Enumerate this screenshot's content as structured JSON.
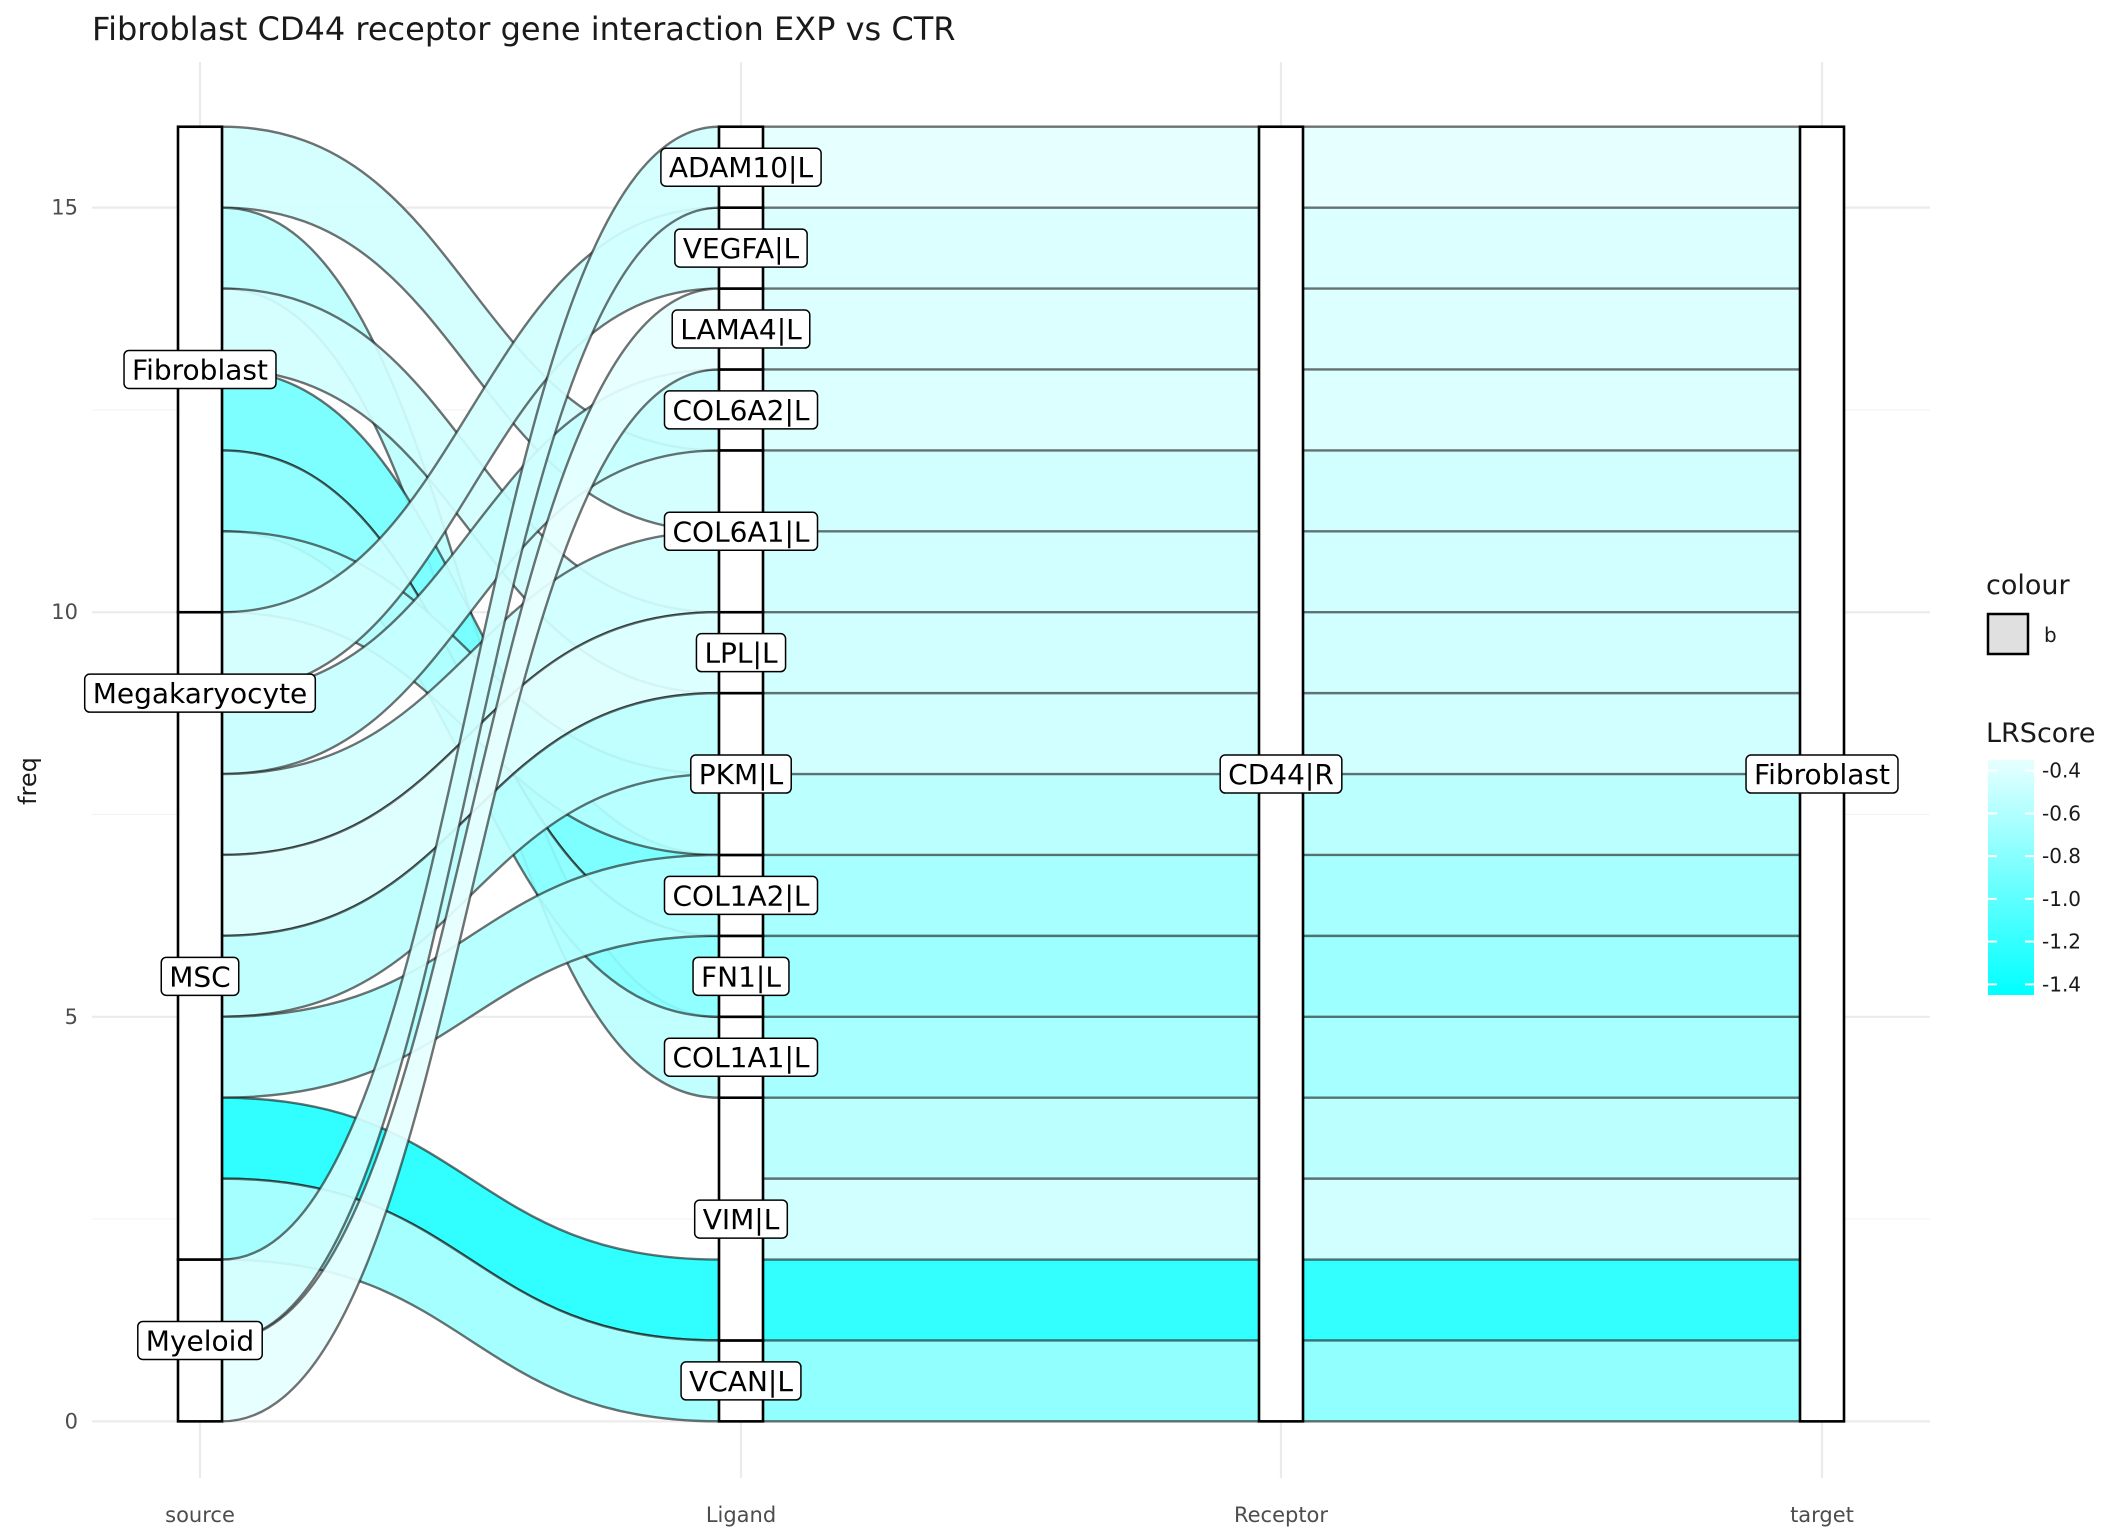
{
  "chart_data": {
    "type": "alluvial",
    "title": "Fibroblast CD44 receptor gene interaction EXP vs CTR",
    "ylabel": "freq",
    "xlabel": "",
    "axes": [
      "source",
      "Ligand",
      "Receptor",
      "target"
    ],
    "y_ticks": [
      0,
      5,
      10,
      15
    ],
    "ylim": [
      -0.7,
      16.8
    ],
    "ymax_total": 16,
    "strata": {
      "source": [
        {
          "name": "Myeloid",
          "from": 0,
          "to": 2
        },
        {
          "name": "MSC",
          "from": 2,
          "to": 9
        },
        {
          "name": "Megakaryocyte",
          "from": 9,
          "to": 10
        },
        {
          "name": "Fibroblast",
          "from": 10,
          "to": 16
        }
      ],
      "Ligand": [
        {
          "name": "VCAN|L",
          "from": 0,
          "to": 1
        },
        {
          "name": "VIM|L",
          "from": 1,
          "to": 4
        },
        {
          "name": "COL1A1|L",
          "from": 4,
          "to": 5
        },
        {
          "name": "FN1|L",
          "from": 5,
          "to": 6
        },
        {
          "name": "COL1A2|L",
          "from": 6,
          "to": 7
        },
        {
          "name": "PKM|L",
          "from": 7,
          "to": 9
        },
        {
          "name": "LPL|L",
          "from": 9,
          "to": 10
        },
        {
          "name": "COL6A1|L",
          "from": 10,
          "to": 12
        },
        {
          "name": "COL6A2|L",
          "from": 12,
          "to": 13
        },
        {
          "name": "LAMA4|L",
          "from": 13,
          "to": 14
        },
        {
          "name": "VEGFA|L",
          "from": 14,
          "to": 15
        },
        {
          "name": "ADAM10|L",
          "from": 15,
          "to": 16
        }
      ],
      "Receptor": [
        {
          "name": "CD44|R",
          "from": 0,
          "to": 16
        }
      ],
      "target": [
        {
          "name": "Fibroblast",
          "from": 0,
          "to": 16
        }
      ]
    },
    "flows": [
      {
        "s0": 15,
        "l0": 11,
        "score": -0.45
      },
      {
        "s0": 14,
        "l0": 4,
        "score": -0.55
      },
      {
        "s0": 13,
        "l0": 9,
        "score": -0.45
      },
      {
        "s0": 12,
        "l0": 6,
        "score": -0.9
      },
      {
        "s0": 11,
        "l0": 5,
        "score": -0.8
      },
      {
        "s0": 10,
        "l0": 7,
        "score": -0.6
      },
      {
        "s0": 9,
        "l0": 14,
        "score": -0.45
      },
      {
        "s0": 8,
        "l0": 12,
        "score": -0.5
      },
      {
        "s0": 7,
        "l0": 10,
        "score": -0.45
      },
      {
        "s0": 6,
        "l0": 9,
        "score": -0.4
      },
      {
        "s0": 5,
        "l0": 8,
        "score": -0.55
      },
      {
        "s0": 4,
        "l0": 6,
        "score": -0.6
      },
      {
        "s0": 3,
        "l0": 1,
        "score": -1.3
      },
      {
        "s0": 2,
        "l0": 0,
        "score": -0.7
      },
      {
        "s0": 1,
        "l0": 15,
        "score": -0.45
      },
      {
        "s0": 0,
        "l0": 13,
        "score": -0.35
      }
    ],
    "right_bands": [
      {
        "y0": 0,
        "score": -0.75
      },
      {
        "y0": 1,
        "score": -1.2
      },
      {
        "y0": 2,
        "score": -0.45
      },
      {
        "y0": 3,
        "score": -0.55
      },
      {
        "y0": 4,
        "score": -0.65
      },
      {
        "y0": 5,
        "score": -0.7
      },
      {
        "y0": 6,
        "score": -0.65
      },
      {
        "y0": 7,
        "score": -0.55
      },
      {
        "y0": 8,
        "score": -0.45
      },
      {
        "y0": 9,
        "score": -0.45
      },
      {
        "y0": 10,
        "score": -0.45
      },
      {
        "y0": 11,
        "score": -0.45
      },
      {
        "y0": 12,
        "score": -0.4
      },
      {
        "y0": 13,
        "score": -0.4
      },
      {
        "y0": 14,
        "score": -0.4
      },
      {
        "y0": 15,
        "score": -0.35
      }
    ],
    "legend": {
      "placement": "right",
      "colour_title": "colour",
      "colour_key": "b",
      "fill_title": "LRScore",
      "fill_ticks": [
        -0.4,
        -0.6,
        -0.8,
        -1.0,
        -1.2,
        -1.4
      ],
      "fill_tick_labels": [
        "-0.4",
        "-0.6",
        "-0.8",
        "-1.0",
        "-1.2",
        "-1.4"
      ],
      "fill_range": [
        -1.45,
        -0.35
      ],
      "color_low": "#00ffff",
      "color_high": "#e6ffff"
    },
    "grid": true
  }
}
